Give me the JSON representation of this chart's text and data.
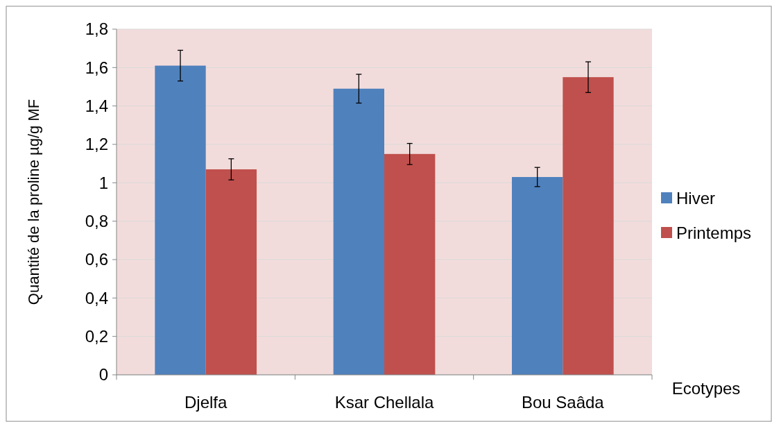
{
  "chart_data": {
    "type": "bar",
    "ylabel": "Quantité de la proline  µg/g  MF",
    "xlabel": "Ecotypes",
    "categories": [
      "Djelfa",
      "Ksar Chellala",
      "Bou Saâda"
    ],
    "series": [
      {
        "name": "Hiver",
        "color": "#4f81bd",
        "values": [
          1.61,
          1.49,
          1.03
        ],
        "errors": [
          0.08,
          0.075,
          0.05
        ]
      },
      {
        "name": "Printemps",
        "color": "#c0504d",
        "values": [
          1.07,
          1.15,
          1.55
        ],
        "errors": [
          0.055,
          0.055,
          0.08
        ]
      }
    ],
    "ylim": [
      0,
      1.8
    ],
    "yticks": [
      0,
      {
        "value": 0.2,
        "label": "0,2"
      },
      {
        "value": 0.4,
        "label": "0,4"
      },
      {
        "value": 0.6,
        "label": "0,6"
      },
      {
        "value": 0.8,
        "label": "0,8"
      },
      1,
      {
        "value": 1.2,
        "label": "1,2"
      },
      {
        "value": 1.4,
        "label": "1,4"
      },
      {
        "value": 1.6,
        "label": "1,6"
      },
      {
        "value": 1.8,
        "label": "1,8"
      }
    ],
    "grid": "y",
    "legend": "right"
  }
}
